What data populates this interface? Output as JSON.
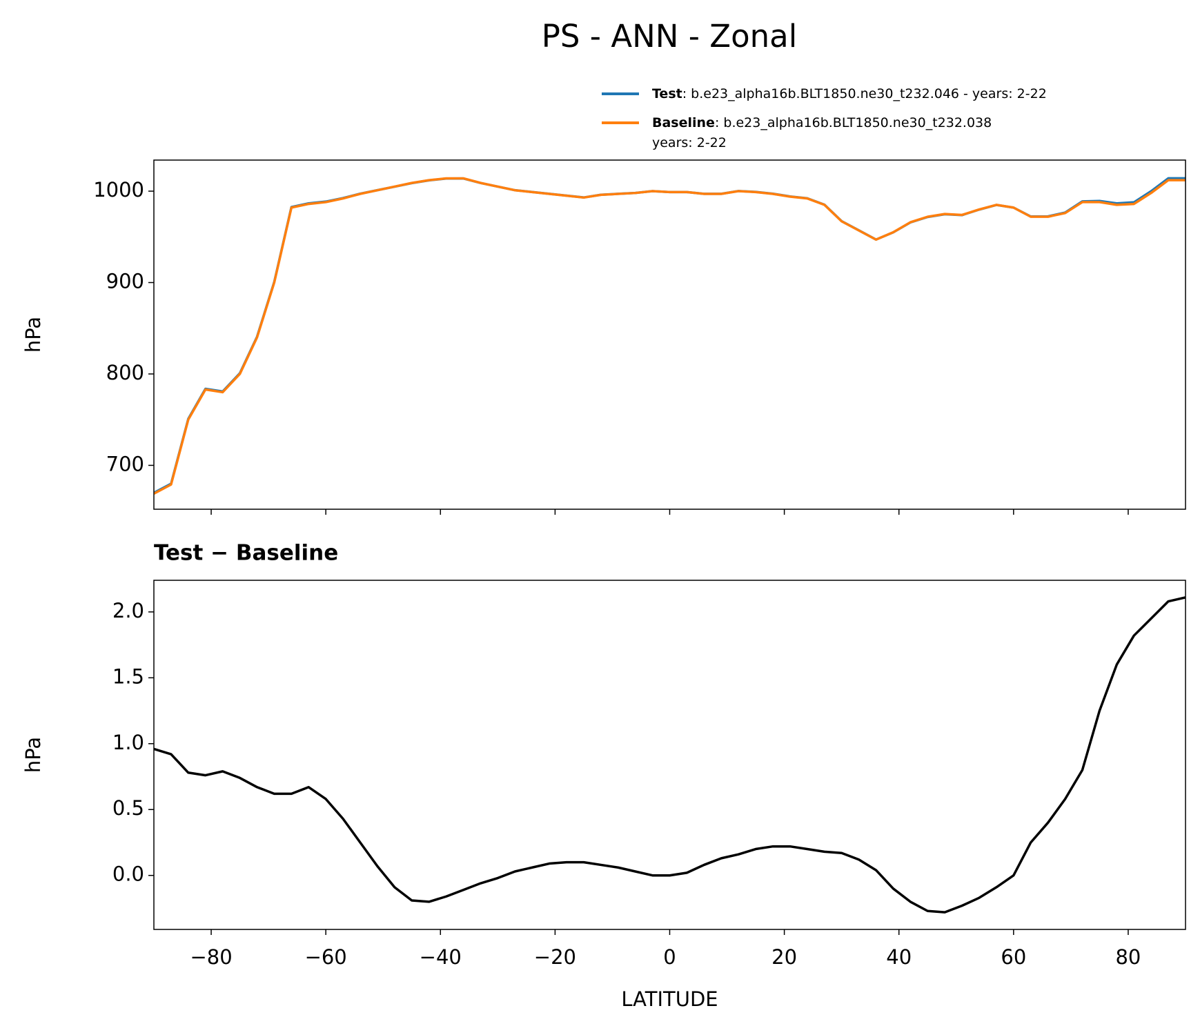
{
  "title": "PS - ANN - Zonal",
  "chart_data": [
    {
      "type": "line",
      "ylabel": "hPa",
      "xlim": [
        -90,
        90
      ],
      "ylim": [
        652,
        1034
      ],
      "xticks": [
        -80,
        -60,
        -40,
        -20,
        0,
        20,
        40,
        60,
        80
      ],
      "yticks": [
        700,
        800,
        900,
        1000
      ],
      "legend": "upper right",
      "x": [
        -90,
        -87,
        -84,
        -81,
        -78,
        -75,
        -72,
        -69,
        -66,
        -63,
        -60,
        -57,
        -54,
        -51,
        -48,
        -45,
        -42,
        -39,
        -36,
        -33,
        -30,
        -27,
        -24,
        -21,
        -18,
        -15,
        -12,
        -9,
        -6,
        -3,
        0,
        3,
        6,
        9,
        12,
        15,
        18,
        21,
        24,
        27,
        30,
        33,
        36,
        39,
        42,
        45,
        48,
        51,
        54,
        57,
        60,
        63,
        66,
        69,
        72,
        75,
        78,
        81,
        84,
        87,
        90
      ],
      "series": [
        {
          "name": "Test",
          "detail": [
            ": b.e23_alpha16b.BLT1850.ne30_t232.046 - years: 2-22"
          ],
          "color": "#1f77b4",
          "values": [
            669.96,
            679.92,
            750.78,
            783.76,
            780.79,
            800.74,
            840.67,
            900.62,
            982.62,
            986.67,
            988.58,
            992.43,
            997.25,
            1001.07,
            1004.91,
            1008.81,
            1011.8,
            1013.84,
            1013.89,
            1008.94,
            1004.98,
            1001.03,
            999.06,
            997.09,
            995.1,
            993.1,
            996.08,
            997.06,
            998.03,
            1000,
            999,
            999.02,
            997.08,
            997.13,
            1000.16,
            999.2,
            997.22,
            994.22,
            992.2,
            985.18,
            967.17,
            957.12,
            947.04,
            954.9,
            965.8,
            971.73,
            974.72,
            973.77,
            979.83,
            984.91,
            982,
            972.25,
            972.4,
            976.58,
            988.8,
            989.25,
            986.6,
            987.82,
            999.95,
            1014.08,
            1014.11
          ]
        },
        {
          "name": "Baseline",
          "detail": [
            ": b.e23_alpha16b.BLT1850.ne30_t232.038",
            "years: 2-22"
          ],
          "color": "#ff7f0e",
          "values": [
            669,
            679,
            750,
            783,
            780,
            800,
            840,
            900,
            982,
            986,
            988,
            992,
            997,
            1001,
            1005,
            1009,
            1012,
            1014,
            1014,
            1009,
            1005,
            1001,
            999,
            997,
            995,
            993,
            996,
            997,
            998,
            1000,
            999,
            999,
            997,
            997,
            1000,
            999,
            997,
            994,
            992,
            985,
            967,
            957,
            947,
            955,
            966,
            972,
            975,
            974,
            980,
            985,
            982,
            972,
            972,
            976,
            988,
            988,
            985,
            986,
            998,
            1012,
            1012
          ]
        }
      ]
    },
    {
      "type": "line",
      "title": "Test − Baseline",
      "ylabel": "hPa",
      "xlabel": "LATITUDE",
      "xlim": [
        -90,
        90
      ],
      "ylim": [
        -0.41,
        2.24
      ],
      "xticks": [
        {
          "value": -80,
          "label": "−80"
        },
        {
          "value": -60,
          "label": "−60"
        },
        {
          "value": -40,
          "label": "−40"
        },
        {
          "value": -20,
          "label": "−20"
        },
        0,
        20,
        40,
        60,
        80
      ],
      "yticks": [
        {
          "value": 0,
          "label": "0.0"
        },
        0.5,
        {
          "value": 1,
          "label": "1.0"
        },
        1.5,
        {
          "value": 2,
          "label": "2.0"
        }
      ],
      "x": [
        -90,
        -87,
        -84,
        -81,
        -78,
        -75,
        -72,
        -69,
        -66,
        -63,
        -60,
        -57,
        -54,
        -51,
        -48,
        -45,
        -42,
        -39,
        -36,
        -33,
        -30,
        -27,
        -24,
        -21,
        -18,
        -15,
        -12,
        -9,
        -6,
        -3,
        0,
        3,
        6,
        9,
        12,
        15,
        18,
        21,
        24,
        27,
        30,
        33,
        36,
        39,
        42,
        45,
        48,
        51,
        54,
        57,
        60,
        63,
        66,
        69,
        72,
        75,
        78,
        81,
        84,
        87,
        90
      ],
      "series": [
        {
          "color": "#000000",
          "values": [
            0.96,
            0.92,
            0.78,
            0.76,
            0.79,
            0.74,
            0.67,
            0.62,
            0.62,
            0.67,
            0.58,
            0.43,
            0.25,
            0.07,
            -0.09,
            -0.19,
            -0.2,
            -0.16,
            -0.11,
            -0.06,
            -0.02,
            0.03,
            0.06,
            0.09,
            0.1,
            0.1,
            0.08,
            0.06,
            0.03,
            0,
            0,
            0.02,
            0.08,
            0.13,
            0.16,
            0.2,
            0.22,
            0.22,
            0.2,
            0.18,
            0.17,
            0.12,
            0.04,
            -0.1,
            -0.2,
            -0.27,
            -0.28,
            -0.23,
            -0.17,
            -0.09,
            0,
            0.25,
            0.4,
            0.58,
            0.8,
            1.25,
            1.6,
            1.82,
            1.95,
            2.08,
            2.11
          ]
        }
      ]
    }
  ]
}
